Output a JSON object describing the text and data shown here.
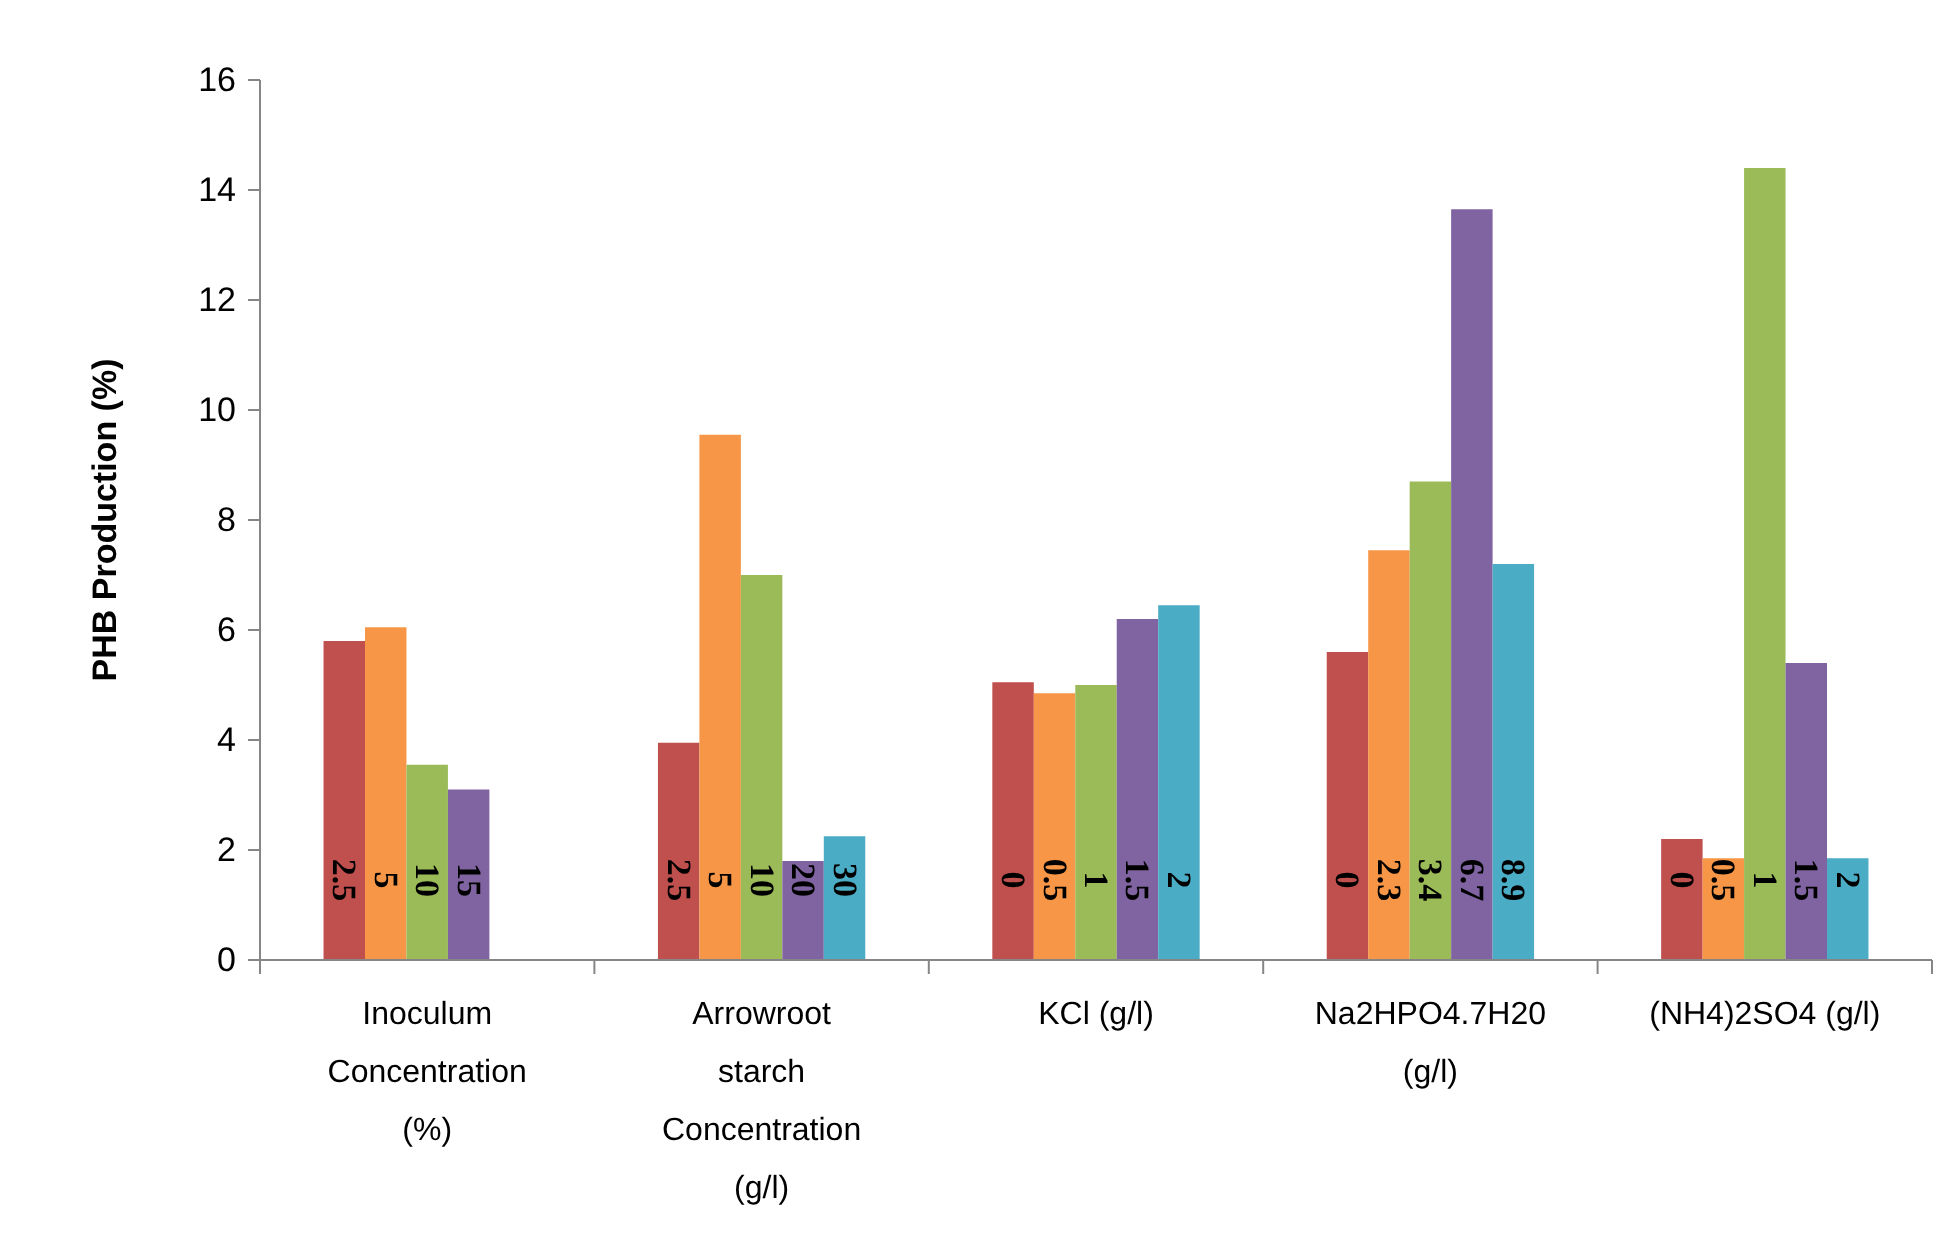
{
  "chart_data": {
    "type": "bar",
    "ylabel": "PHB Production (%)",
    "categories": [
      "Inoculum Concentration (%)",
      "Arrowroot starch Concentration (g/l)",
      "KCl (g/l)",
      "Na2HPO4.7H20 (g/l)",
      "(NH4)2SO4   (g/l)"
    ],
    "series": [
      {
        "color": "#c0504d",
        "values": [
          5.8,
          3.95,
          5.05,
          5.6,
          2.2
        ]
      },
      {
        "color": "#f79646",
        "values": [
          6.05,
          9.55,
          4.85,
          7.45,
          1.85
        ]
      },
      {
        "color": "#9bbb59",
        "values": [
          3.55,
          7.0,
          5.0,
          8.7,
          14.4
        ]
      },
      {
        "color": "#8064a2",
        "values": [
          3.1,
          1.8,
          6.2,
          13.65,
          5.4
        ]
      },
      {
        "color": "#4bacc6",
        "values": [
          null,
          2.25,
          6.45,
          7.2,
          1.85
        ]
      }
    ],
    "annotations": [
      "2.5",
      "5",
      "10",
      "15",
      "2.5",
      "5",
      "10",
      "20",
      "30",
      "0",
      "0.5",
      "1",
      "1.5",
      "2",
      "0",
      "2.3",
      "3.4",
      "6.7",
      "8.9",
      "0",
      "0.5",
      "1",
      "1.5",
      "2"
    ],
    "ylim": [
      0,
      16
    ],
    "yticks": [
      0,
      2,
      4,
      6,
      8,
      10,
      12,
      14,
      16
    ],
    "grid": false
  }
}
